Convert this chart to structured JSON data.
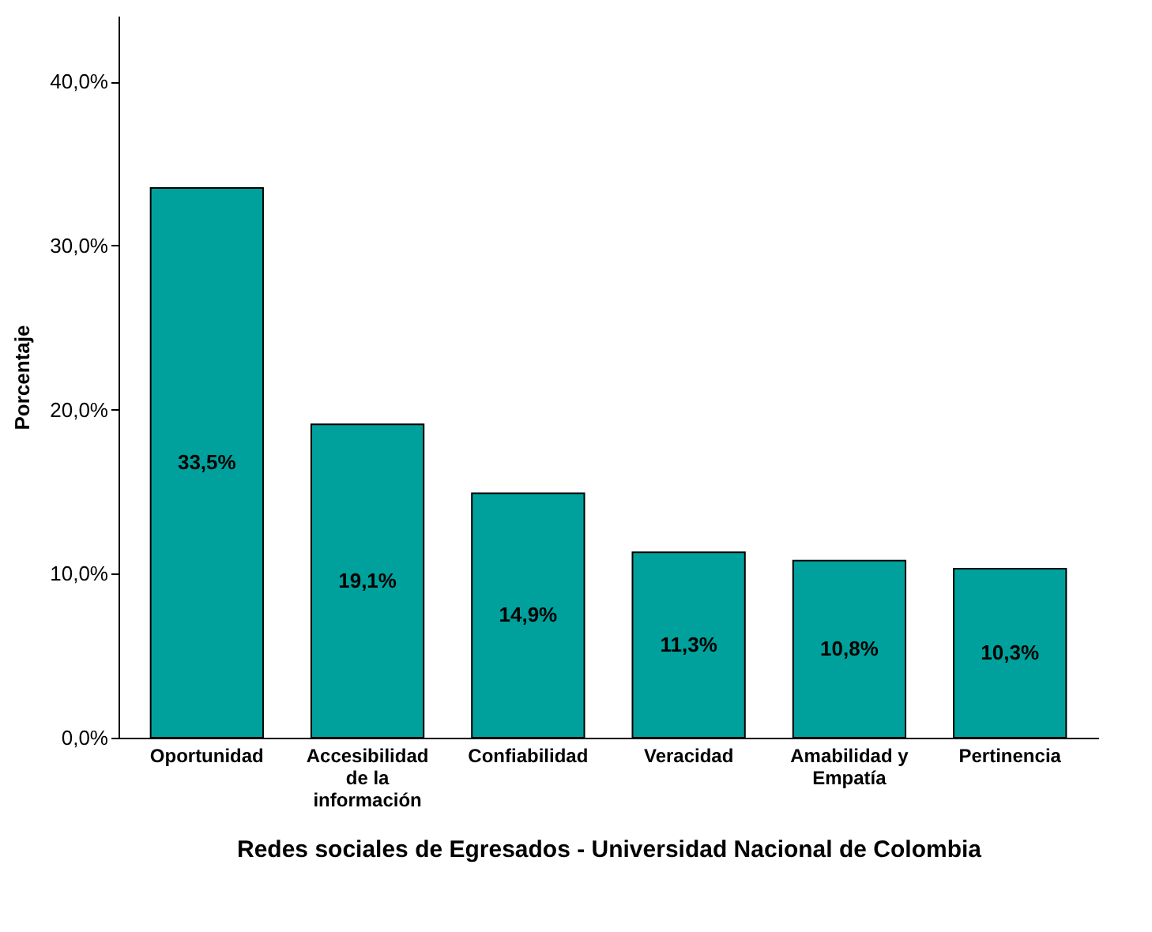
{
  "chart_data": {
    "type": "bar",
    "categories": [
      "Oportunidad",
      "Accesibilidad de la información",
      "Confiabilidad",
      "Veracidad",
      "Amabilidad y Empatía",
      "Pertinencia"
    ],
    "values": [
      33.5,
      19.1,
      14.9,
      11.3,
      10.8,
      10.3
    ],
    "value_labels": [
      "33,5%",
      "19,1%",
      "14,9%",
      "11,3%",
      "10,8%",
      "10,3%"
    ],
    "color": "#00a19c",
    "xlabel": "Redes sociales de Egresados - Universidad Nacional de Colombia",
    "ylabel": "Porcentaje",
    "ylim": [
      0,
      44
    ],
    "yticks": [
      {
        "value": 0,
        "label": "0,0%"
      },
      {
        "value": 10,
        "label": "10,0%"
      },
      {
        "value": 20,
        "label": "20,0%"
      },
      {
        "value": 30,
        "label": "30,0%"
      },
      {
        "value": 40,
        "label": "40,0%"
      }
    ],
    "grid": false
  }
}
